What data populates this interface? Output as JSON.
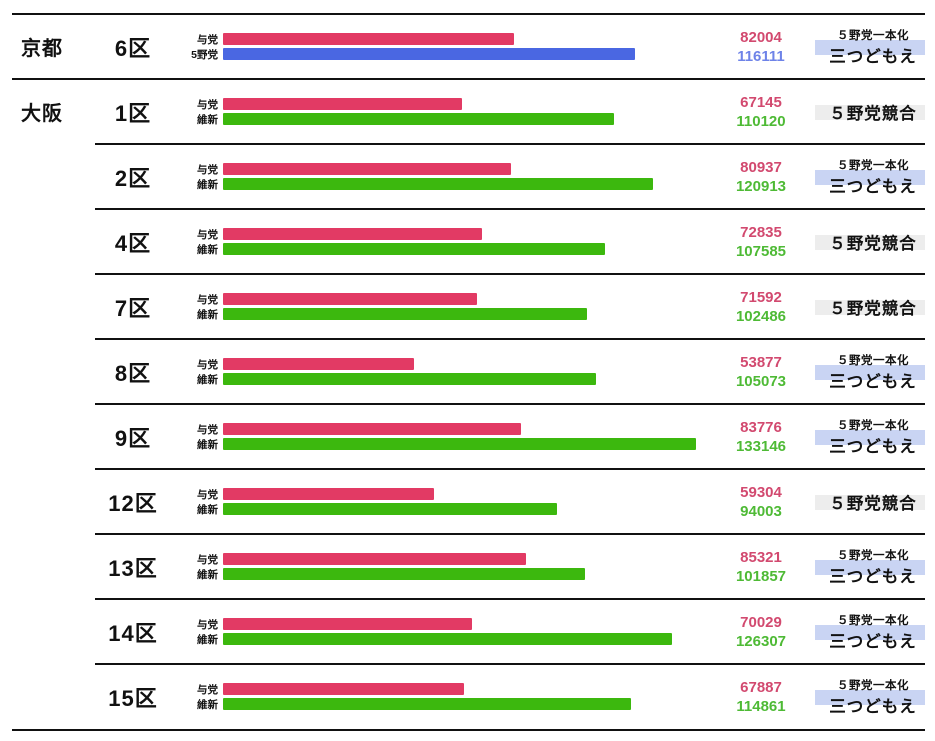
{
  "palette": {
    "line_color": "#111111",
    "ruling_bar": "#e23a64",
    "ruling_text": "#d2496f",
    "opp5_bar": "#4a67e2",
    "opp5_text": "#6e83e8",
    "ishin_bar": "#3cb80e",
    "ishin_text": "#4eba35",
    "tag_band_blue": "#c9d4f3",
    "tag_band_gray": "#ededed"
  },
  "chart_data": {
    "type": "bar",
    "orientation": "horizontal",
    "value_unit": "votes",
    "x_max_estimate": 133146,
    "legend_note": "rows compare 与党 (ruling) vs opposition (5野党 or 維新) votes per district",
    "groups": [
      {
        "prefecture": "京都",
        "districts": [
          {
            "district": "6区",
            "bars": [
              {
                "label": "与党",
                "value": 82004,
                "color": "ruling"
              },
              {
                "label": "5野党",
                "value": 116111,
                "color": "opp5"
              }
            ],
            "tag": {
              "style": "blue",
              "lines": [
                "５野党一本化",
                "三つどもえ"
              ]
            }
          }
        ]
      },
      {
        "prefecture": "大阪",
        "districts": [
          {
            "district": "1区",
            "bars": [
              {
                "label": "与党",
                "value": 67145,
                "color": "ruling"
              },
              {
                "label": "維新",
                "value": 110120,
                "color": "ishin"
              }
            ],
            "tag": {
              "style": "gray",
              "lines": [
                "５野党競合"
              ]
            }
          },
          {
            "district": "2区",
            "bars": [
              {
                "label": "与党",
                "value": 80937,
                "color": "ruling"
              },
              {
                "label": "維新",
                "value": 120913,
                "color": "ishin"
              }
            ],
            "tag": {
              "style": "blue",
              "lines": [
                "５野党一本化",
                "三つどもえ"
              ]
            }
          },
          {
            "district": "4区",
            "bars": [
              {
                "label": "与党",
                "value": 72835,
                "color": "ruling"
              },
              {
                "label": "維新",
                "value": 107585,
                "color": "ishin"
              }
            ],
            "tag": {
              "style": "gray",
              "lines": [
                "５野党競合"
              ]
            }
          },
          {
            "district": "7区",
            "bars": [
              {
                "label": "与党",
                "value": 71592,
                "color": "ruling"
              },
              {
                "label": "維新",
                "value": 102486,
                "color": "ishin"
              }
            ],
            "tag": {
              "style": "gray",
              "lines": [
                "５野党競合"
              ]
            }
          },
          {
            "district": "8区",
            "bars": [
              {
                "label": "与党",
                "value": 53877,
                "color": "ruling"
              },
              {
                "label": "維新",
                "value": 105073,
                "color": "ishin"
              }
            ],
            "tag": {
              "style": "blue",
              "lines": [
                "５野党一本化",
                "三つどもえ"
              ]
            }
          },
          {
            "district": "9区",
            "bars": [
              {
                "label": "与党",
                "value": 83776,
                "color": "ruling"
              },
              {
                "label": "維新",
                "value": 133146,
                "color": "ishin"
              }
            ],
            "tag": {
              "style": "blue",
              "lines": [
                "５野党一本化",
                "三つどもえ"
              ]
            }
          },
          {
            "district": "12区",
            "bars": [
              {
                "label": "与党",
                "value": 59304,
                "color": "ruling"
              },
              {
                "label": "維新",
                "value": 94003,
                "color": "ishin"
              }
            ],
            "tag": {
              "style": "gray",
              "lines": [
                "５野党競合"
              ]
            }
          },
          {
            "district": "13区",
            "bars": [
              {
                "label": "与党",
                "value": 85321,
                "color": "ruling"
              },
              {
                "label": "維新",
                "value": 101857,
                "color": "ishin"
              }
            ],
            "tag": {
              "style": "blue",
              "lines": [
                "５野党一本化",
                "三つどもえ"
              ]
            }
          },
          {
            "district": "14区",
            "bars": [
              {
                "label": "与党",
                "value": 70029,
                "color": "ruling"
              },
              {
                "label": "維新",
                "value": 126307,
                "color": "ishin"
              }
            ],
            "tag": {
              "style": "blue",
              "lines": [
                "５野党一本化",
                "三つどもえ"
              ]
            }
          },
          {
            "district": "15区",
            "bars": [
              {
                "label": "与党",
                "value": 67887,
                "color": "ruling"
              },
              {
                "label": "維新",
                "value": 114861,
                "color": "ishin"
              }
            ],
            "tag": {
              "style": "blue",
              "lines": [
                "５野党一本化",
                "三つどもえ"
              ]
            }
          }
        ]
      }
    ]
  }
}
